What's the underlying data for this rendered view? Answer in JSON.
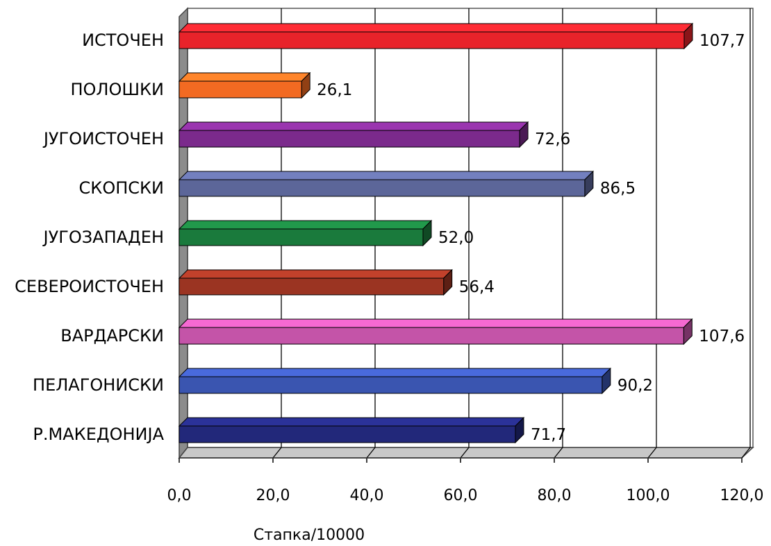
{
  "chart_data": {
    "type": "bar",
    "orientation": "horizontal",
    "categories": [
      "ИСТОЧЕН",
      "ПОЛОШКИ",
      "ЈУГОИСТОЧЕН",
      "СКОПСКИ",
      "ЈУГОЗАПАДЕН",
      "СЕВЕРОИСТОЧЕН",
      "ВАРДАРСКИ",
      "ПЕЛАГОНИСКИ",
      "Р.МАКЕДОНИЈА"
    ],
    "values": [
      107.7,
      26.1,
      72.6,
      86.5,
      52.0,
      56.4,
      107.6,
      90.2,
      71.7
    ],
    "value_labels": [
      "107,7",
      "26,1",
      "72,6",
      "86,5",
      "52,0",
      "56,4",
      "107,6",
      "90,2",
      "71,7"
    ],
    "bar_colors": [
      "#e8232a",
      "#f26a22",
      "#7b2a8c",
      "#5c6699",
      "#1a7a3c",
      "#9b3422",
      "#c454a8",
      "#3a55b0",
      "#22287a"
    ],
    "xlabel": "Стапка/10000",
    "ylabel": "",
    "xlim": [
      0,
      120
    ],
    "xticks": [
      0,
      20,
      40,
      60,
      80,
      100,
      120
    ],
    "xtick_labels": [
      "0,0",
      "20,0",
      "40,0",
      "60,0",
      "80,0",
      "100,0",
      "120,0"
    ],
    "grid": true,
    "legend": "none",
    "style": "3d"
  }
}
